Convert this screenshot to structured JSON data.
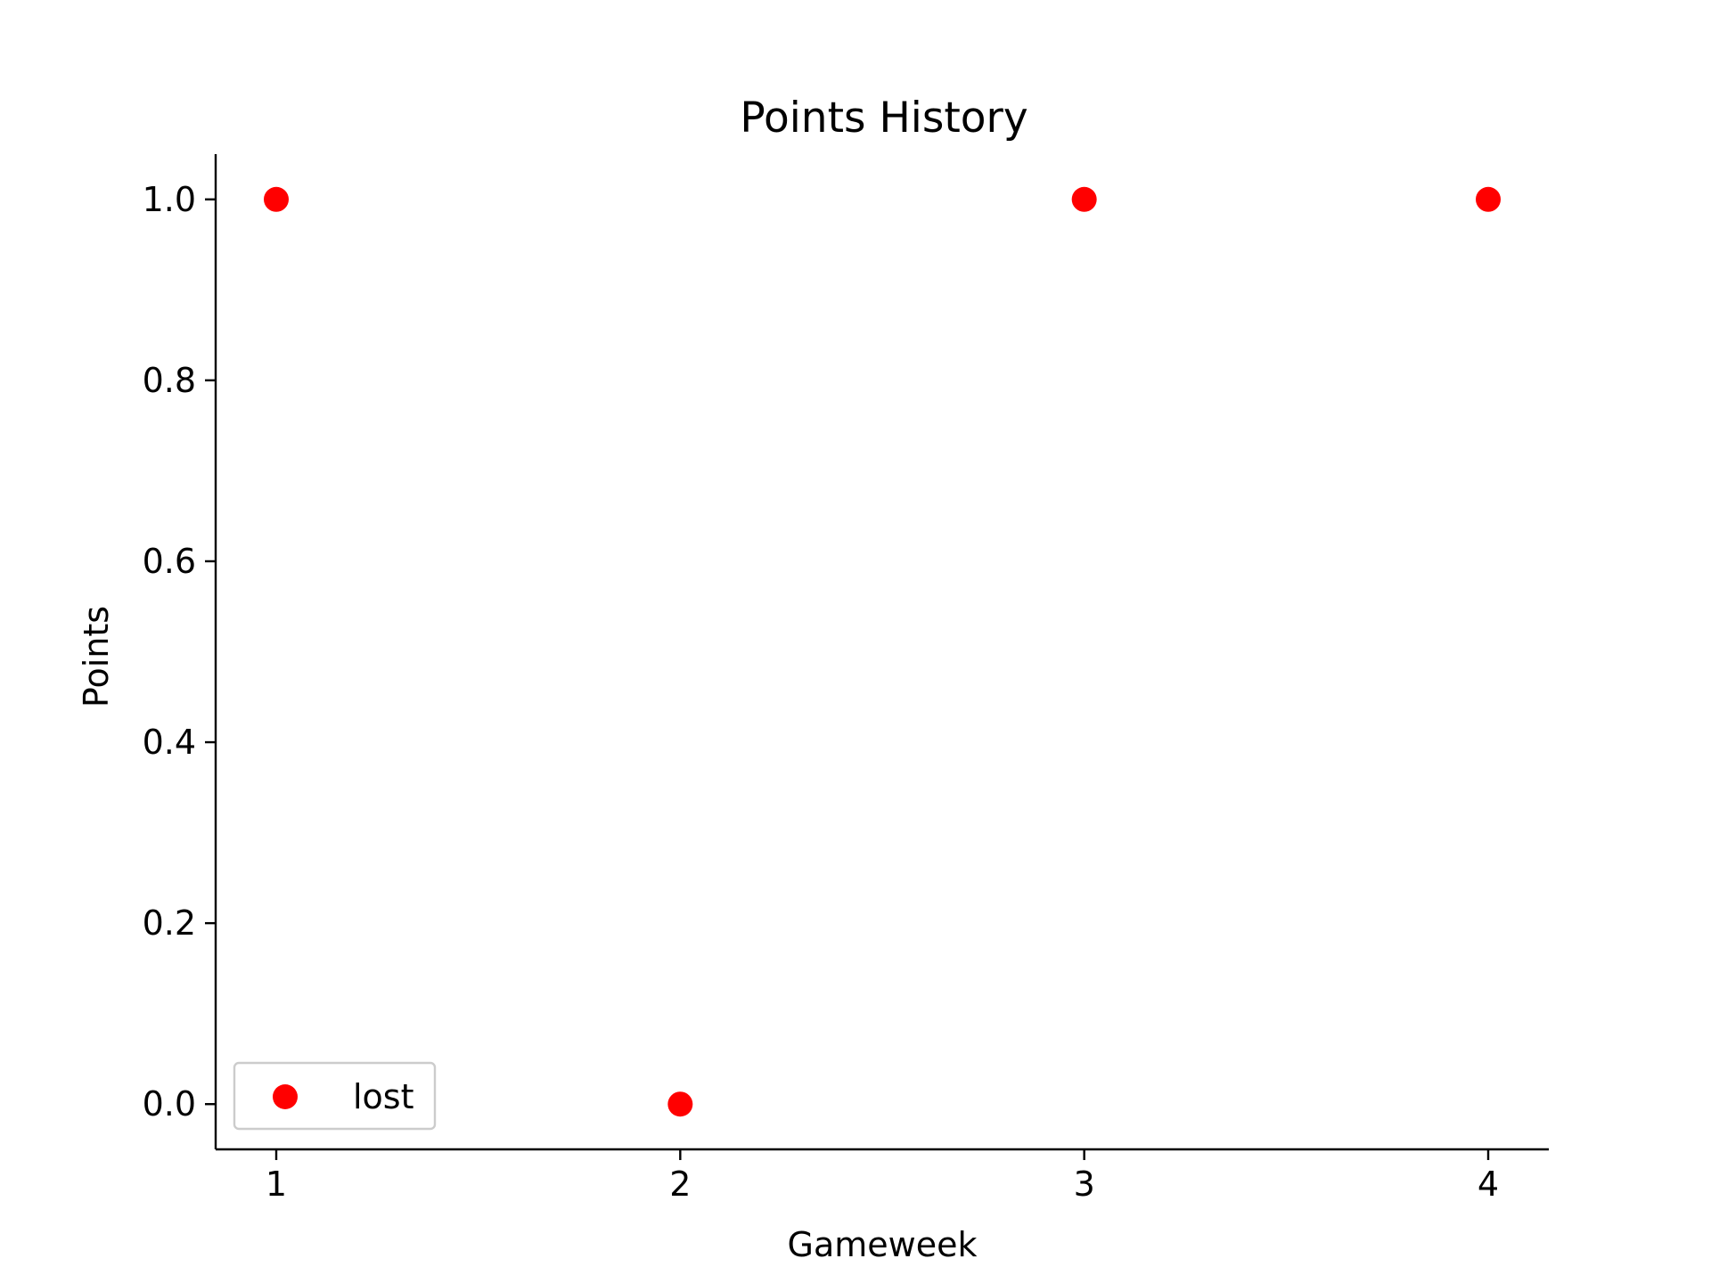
{
  "chart_data": {
    "type": "scatter",
    "title": "Points History",
    "xlabel": "Gameweek",
    "ylabel": "Points",
    "x": [
      1,
      2,
      3,
      4
    ],
    "series": [
      {
        "name": "lost",
        "color": "#ff0000",
        "values": [
          1.0,
          0.0,
          1.0,
          1.0
        ]
      }
    ],
    "xlim": [
      0.85,
      4.15
    ],
    "ylim": [
      -0.05,
      1.05
    ],
    "xticks": [
      1,
      2,
      3,
      4
    ],
    "xtick_labels": [
      "1",
      "2",
      "3",
      "4"
    ],
    "yticks": [
      0.0,
      0.2,
      0.4,
      0.6,
      0.8,
      1.0
    ],
    "ytick_labels": [
      "0.0",
      "0.2",
      "0.4",
      "0.6",
      "0.8",
      "1.0"
    ],
    "grid": false,
    "legend_position": "lower-left",
    "spines": "left-bottom"
  }
}
